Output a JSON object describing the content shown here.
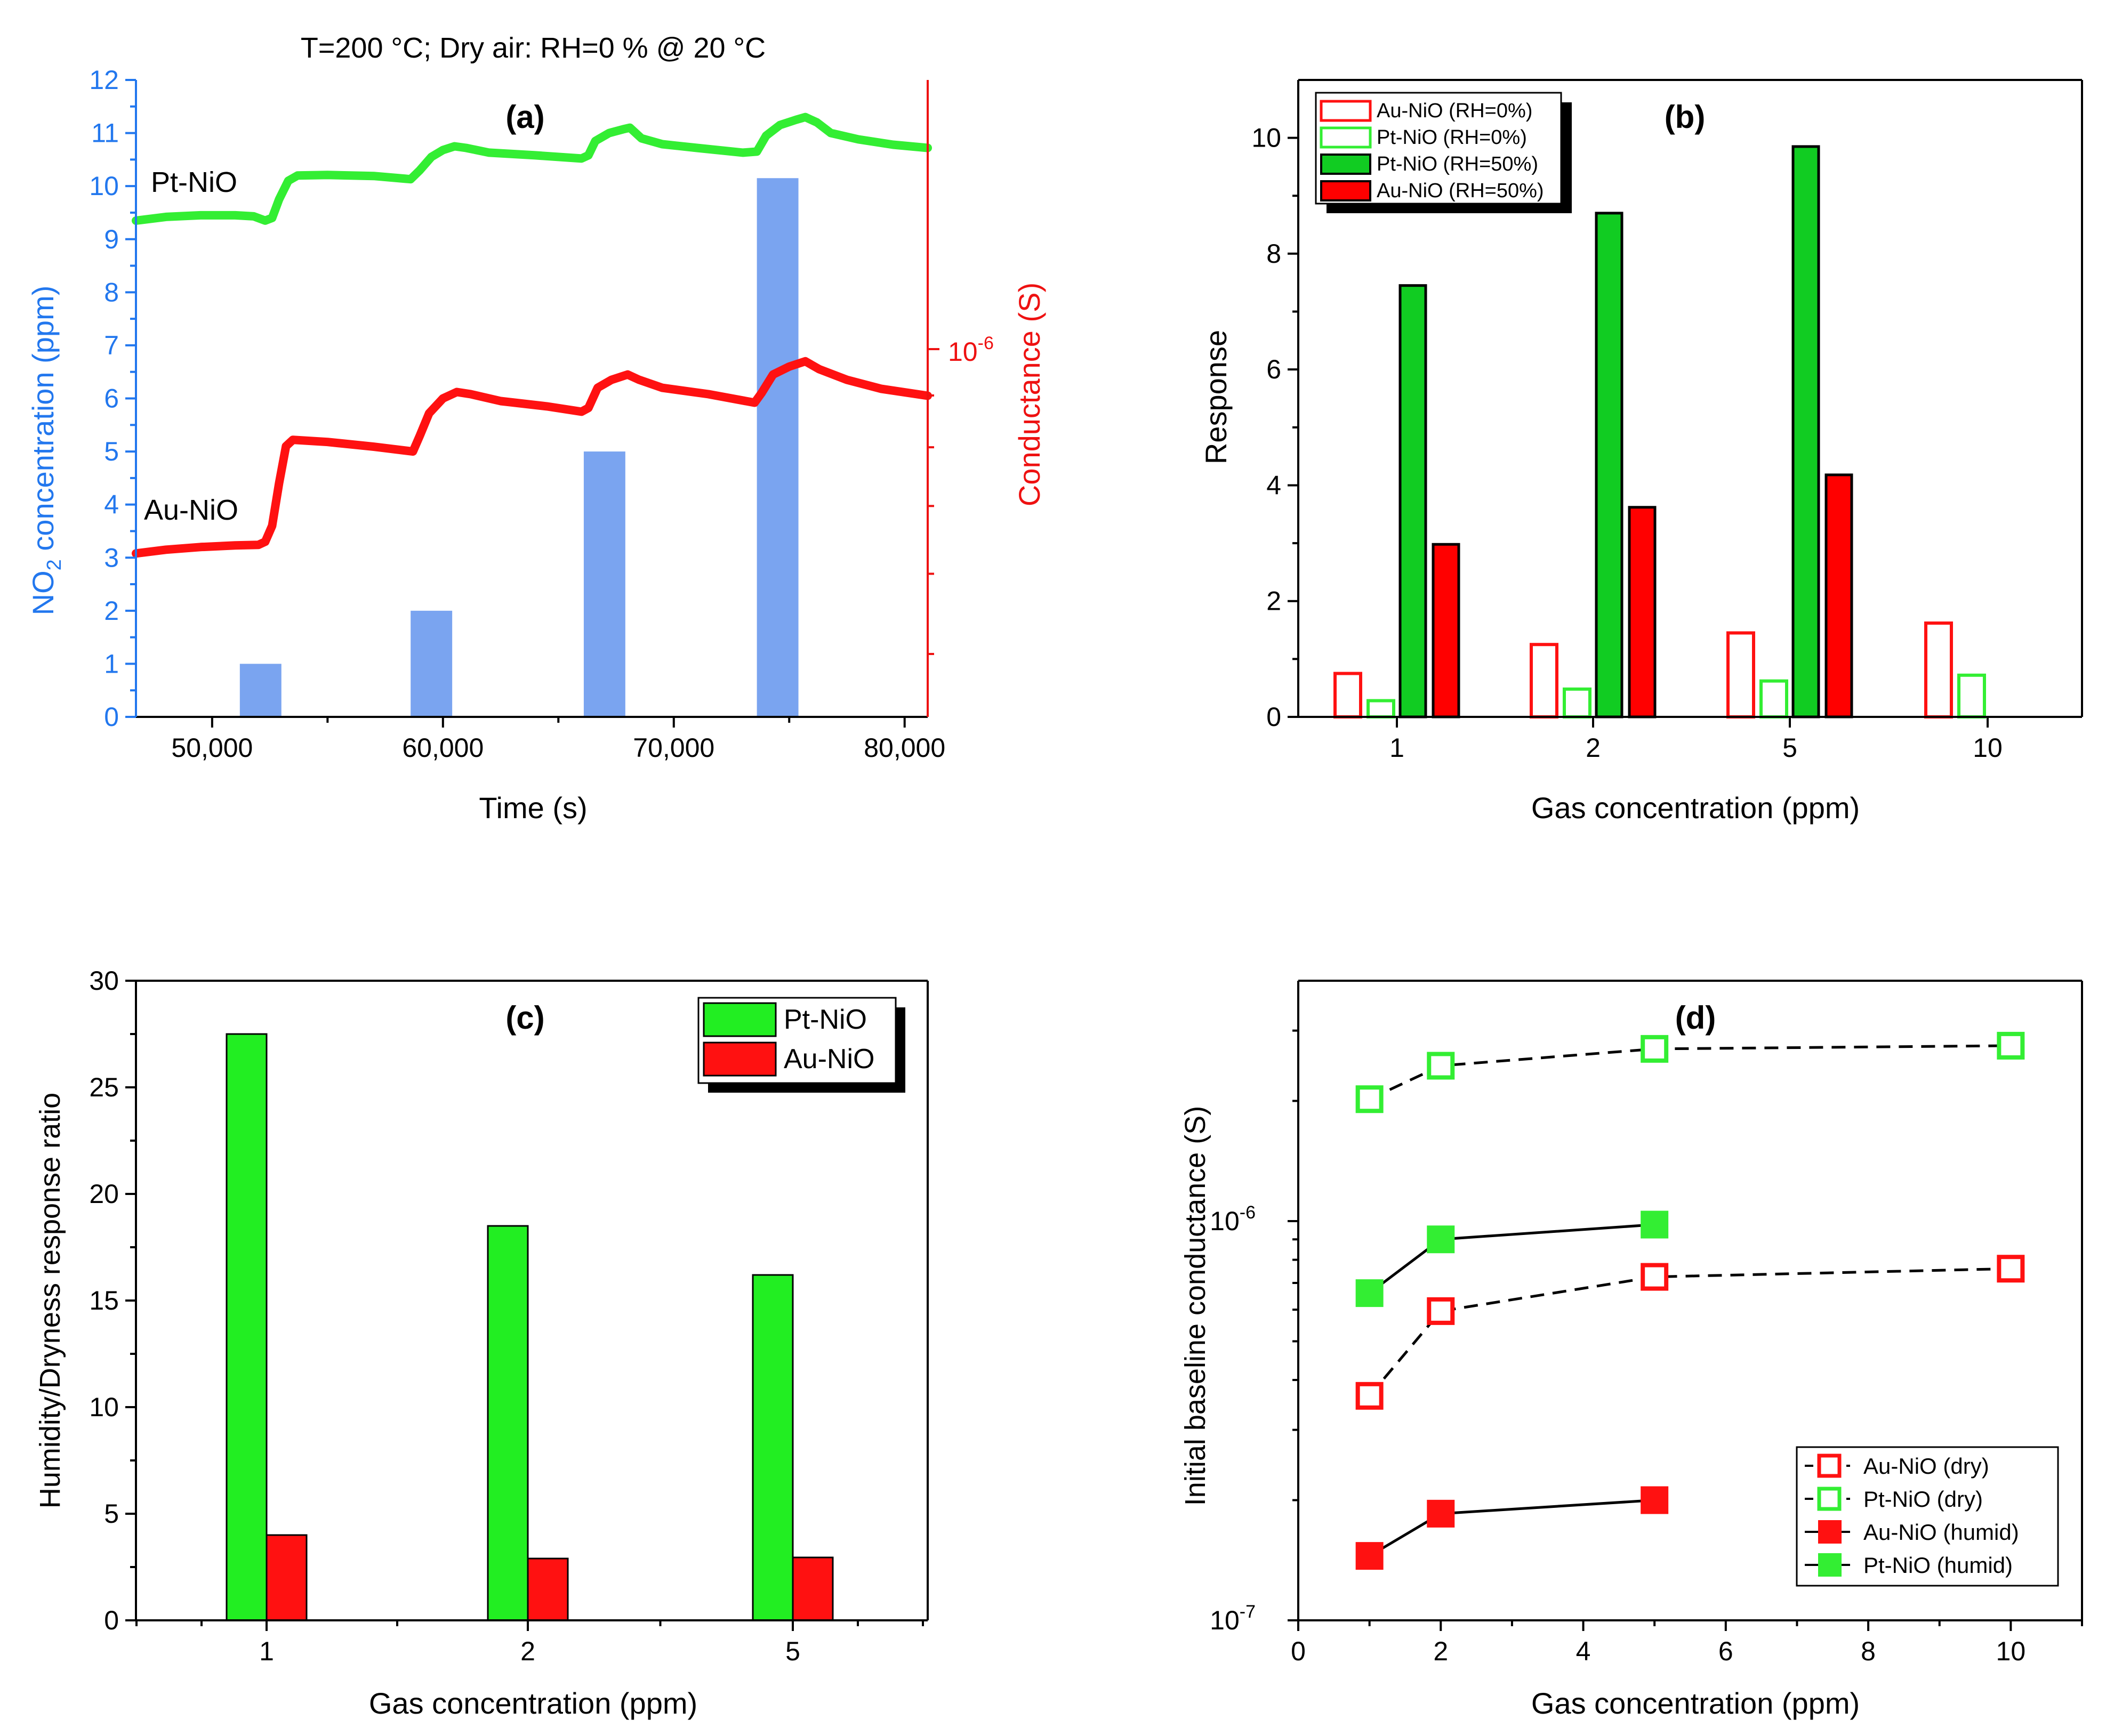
{
  "figure": {
    "colors": {
      "green": "#33ee33",
      "red": "#ff1111",
      "blue_bar": "#7aa4f0",
      "blue_axis": "#2277ee",
      "red_axis": "#ee1111"
    }
  },
  "chart_data": [
    {
      "id": "a",
      "type": "line",
      "title": "T=200 °C; Dry air: RH=0 % @ 20 °C",
      "panel_label": "(a)",
      "xlabel": "Time (s)",
      "ylabel_left_main": "NO",
      "ylabel_left_sub": "2",
      "ylabel_left_rest": " concentration (ppm)",
      "ylabel_right": "Conductance (S)",
      "xlim": [
        46700,
        81000
      ],
      "ylim_left": [
        0,
        12
      ],
      "x_ticks": [
        50000,
        60000,
        70000,
        80000
      ],
      "x_tick_labels": [
        "50,000",
        "60,000",
        "70,000",
        "80,000"
      ],
      "y_ticks_left": [
        0,
        1,
        2,
        3,
        4,
        5,
        6,
        7,
        8,
        9,
        10,
        11,
        12
      ],
      "y_tick_labels_left": [
        "0",
        "1",
        "2",
        "3",
        "4",
        "5",
        "6",
        "7",
        "8",
        "9",
        "10",
        "11",
        "12"
      ],
      "right_axis": {
        "scale": "log",
        "major_tick_label": "10",
        "major_tick_exp": "-6",
        "major_tick_value": 1e-06
      },
      "no2_pulses": [
        {
          "start": 51200,
          "end": 53000,
          "ppm": 1
        },
        {
          "start": 58600,
          "end": 60400,
          "ppm": 2
        },
        {
          "start": 66100,
          "end": 67900,
          "ppm": 5
        },
        {
          "start": 73600,
          "end": 75400,
          "ppm": 10.15
        }
      ],
      "series_labels": [
        "Pt-NiO",
        "Au-NiO"
      ],
      "series": [
        {
          "name": "Pt-NiO",
          "color": "#33ee33",
          "axis_equiv_ppm": [
            [
              46700,
              9.35
            ],
            [
              48000,
              9.42
            ],
            [
              49500,
              9.45
            ],
            [
              51000,
              9.45
            ],
            [
              51800,
              9.43
            ],
            [
              52300,
              9.35
            ],
            [
              52600,
              9.4
            ],
            [
              52900,
              9.75
            ],
            [
              53300,
              10.1
            ],
            [
              53700,
              10.2
            ],
            [
              55000,
              10.21
            ],
            [
              57000,
              10.19
            ],
            [
              58600,
              10.13
            ],
            [
              59000,
              10.3
            ],
            [
              59500,
              10.55
            ],
            [
              60000,
              10.68
            ],
            [
              60500,
              10.75
            ],
            [
              61000,
              10.72
            ],
            [
              62000,
              10.63
            ],
            [
              64000,
              10.58
            ],
            [
              66000,
              10.52
            ],
            [
              66300,
              10.58
            ],
            [
              66600,
              10.85
            ],
            [
              67200,
              11.0
            ],
            [
              67800,
              11.07
            ],
            [
              68100,
              11.1
            ],
            [
              68600,
              10.9
            ],
            [
              69500,
              10.79
            ],
            [
              71000,
              10.72
            ],
            [
              73000,
              10.63
            ],
            [
              73600,
              10.65
            ],
            [
              74000,
              10.95
            ],
            [
              74600,
              11.15
            ],
            [
              75300,
              11.25
            ],
            [
              75700,
              11.3
            ],
            [
              76200,
              11.2
            ],
            [
              76800,
              11.0
            ],
            [
              78000,
              10.88
            ],
            [
              79500,
              10.78
            ],
            [
              81000,
              10.72
            ]
          ]
        },
        {
          "name": "Au-NiO",
          "color": "#ff1111",
          "axis_equiv_ppm": [
            [
              46700,
              3.08
            ],
            [
              48000,
              3.15
            ],
            [
              49500,
              3.2
            ],
            [
              51000,
              3.23
            ],
            [
              52000,
              3.24
            ],
            [
              52300,
              3.3
            ],
            [
              52600,
              3.6
            ],
            [
              52900,
              4.4
            ],
            [
              53200,
              5.1
            ],
            [
              53500,
              5.22
            ],
            [
              55000,
              5.18
            ],
            [
              57000,
              5.09
            ],
            [
              58700,
              5.0
            ],
            [
              59000,
              5.3
            ],
            [
              59400,
              5.72
            ],
            [
              60000,
              6.0
            ],
            [
              60600,
              6.12
            ],
            [
              61200,
              6.08
            ],
            [
              62500,
              5.95
            ],
            [
              64500,
              5.85
            ],
            [
              66000,
              5.75
            ],
            [
              66300,
              5.82
            ],
            [
              66700,
              6.2
            ],
            [
              67300,
              6.35
            ],
            [
              68000,
              6.45
            ],
            [
              68500,
              6.35
            ],
            [
              69500,
              6.2
            ],
            [
              71500,
              6.08
            ],
            [
              73500,
              5.92
            ],
            [
              73800,
              6.1
            ],
            [
              74300,
              6.45
            ],
            [
              75000,
              6.6
            ],
            [
              75700,
              6.7
            ],
            [
              76300,
              6.55
            ],
            [
              77500,
              6.35
            ],
            [
              79000,
              6.18
            ],
            [
              81000,
              6.05
            ]
          ]
        }
      ]
    },
    {
      "id": "b",
      "type": "bar",
      "panel_label": "(b)",
      "xlabel": "Gas concentration (ppm)",
      "ylabel": "Response",
      "ylim": [
        0,
        11
      ],
      "y_ticks": [
        0,
        2,
        4,
        6,
        8,
        10
      ],
      "y_tick_labels": [
        "0",
        "2",
        "4",
        "6",
        "8",
        "10"
      ],
      "categories": [
        "1",
        "2",
        "5",
        "10"
      ],
      "series": [
        {
          "name": "Au-NiO (RH=0%)",
          "values": [
            0.75,
            1.25,
            1.45,
            1.62
          ],
          "color": "#ff1111",
          "filled": false
        },
        {
          "name": "Pt-NiO (RH=0%)",
          "values": [
            0.28,
            0.48,
            0.62,
            0.72
          ],
          "color": "#33ee33",
          "filled": false
        },
        {
          "name": "Pt-NiO (RH=50%)",
          "values": [
            7.45,
            8.7,
            9.85,
            null
          ],
          "color": "#11cc22",
          "filled": true
        },
        {
          "name": "Au-NiO (RH=50%)",
          "values": [
            2.98,
            3.62,
            4.18,
            null
          ],
          "color": "#ff0000",
          "filled": true
        }
      ]
    },
    {
      "id": "c",
      "type": "bar",
      "panel_label": "(c)",
      "xlabel": "Gas concentration (ppm)",
      "ylabel": "Humidity/Dryness response ratio",
      "ylim": [
        0,
        30
      ],
      "y_ticks": [
        0,
        5,
        10,
        15,
        20,
        25,
        30
      ],
      "y_tick_labels": [
        "0",
        "5",
        "10",
        "15",
        "20",
        "25",
        "30"
      ],
      "categories": [
        "1",
        "2",
        "5"
      ],
      "series": [
        {
          "name": "Pt-NiO",
          "values": [
            27.5,
            18.5,
            16.2
          ],
          "color": "#22ee22"
        },
        {
          "name": "Au-NiO",
          "values": [
            4.0,
            2.9,
            2.95
          ],
          "color": "#ff1111"
        }
      ]
    },
    {
      "id": "d",
      "type": "scatter",
      "panel_label": "(d)",
      "xlabel": "Gas concentration (ppm)",
      "ylabel": "Initial baseline conductance (S)",
      "xlim": [
        0,
        11
      ],
      "ylim": [
        1e-07,
        4e-06
      ],
      "yscale": "log",
      "x_ticks": [
        0,
        2,
        4,
        6,
        8,
        10
      ],
      "x_tick_labels": [
        "0",
        "2",
        "4",
        "6",
        "8",
        "10"
      ],
      "y_tick_base": "10",
      "y_tick_exps": [
        "-7",
        "-6"
      ],
      "series": [
        {
          "name": "Au-NiO (dry)",
          "x": [
            1,
            2,
            5,
            10
          ],
          "y": [
            3.65e-07,
            5.95e-07,
            7.25e-07,
            7.6e-07
          ],
          "color": "#ff1111",
          "filled": false,
          "dashed": true
        },
        {
          "name": "Pt-NiO (dry)",
          "x": [
            1,
            2,
            5,
            10
          ],
          "y": [
            2.02e-06,
            2.45e-06,
            2.7e-06,
            2.75e-06
          ],
          "color": "#33ee33",
          "filled": false,
          "dashed": true
        },
        {
          "name": "Au-NiO (humid)",
          "x": [
            1,
            2,
            5
          ],
          "y": [
            1.45e-07,
            1.85e-07,
            2e-07
          ],
          "color": "#ff1111",
          "filled": true,
          "dashed": false
        },
        {
          "name": "Pt-NiO (humid)",
          "x": [
            1,
            2,
            5
          ],
          "y": [
            6.6e-07,
            9e-07,
            9.8e-07
          ],
          "color": "#33ee33",
          "filled": true,
          "dashed": false
        }
      ]
    }
  ]
}
